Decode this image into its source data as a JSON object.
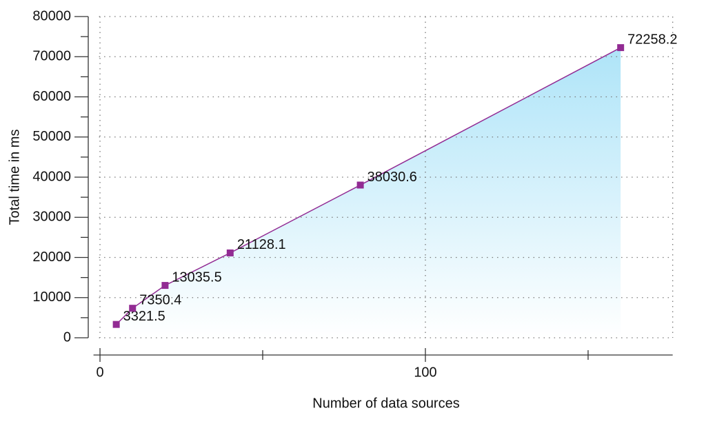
{
  "chart_data": {
    "type": "line",
    "x_label": "Number of data sources",
    "y_label": "Total time in ms",
    "x": [
      5,
      10,
      20,
      40,
      80,
      160
    ],
    "series": [
      {
        "name": "Total time",
        "color": "#922b93",
        "values": [
          3321.5,
          7350.4,
          13035.5,
          21128.1,
          38030.6,
          72258.2
        ]
      }
    ],
    "area_fill": "#aee4f8",
    "xlim": [
      -2,
      176
    ],
    "xticks": [
      0,
      100
    ],
    "xminorticks": [
      50,
      150
    ],
    "ylim": [
      0,
      80000
    ],
    "yticks": [
      0,
      10000,
      20000,
      30000,
      40000,
      50000,
      60000,
      70000,
      80000
    ],
    "yminorticks": [
      5000,
      15000,
      25000,
      35000,
      45000,
      55000,
      65000,
      75000
    ],
    "grid": true
  }
}
